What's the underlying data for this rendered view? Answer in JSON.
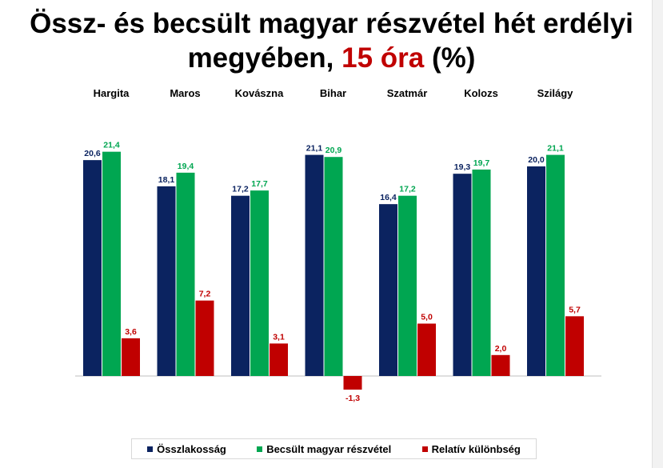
{
  "title": {
    "line1": "Össz- és becsült magyar részvétel hét erdélyi",
    "line2_pre": "megyében, ",
    "line2_highlight": "15 óra",
    "line2_post": " (%)"
  },
  "colors": {
    "Összlakosság": "#0b2360",
    "Becsült magyar részvétel": "#00a651",
    "Relatív különbség": "#c00000",
    "title_highlight": "#c00000"
  },
  "chart_data": {
    "type": "bar",
    "title": "Össz- és becsült magyar részvétel hét erdélyi megyében, 15 óra (%)",
    "categories": [
      "Hargita",
      "Maros",
      "Kovászna",
      "Bihar",
      "Szatmár",
      "Kolozs",
      "Szilágy"
    ],
    "series": [
      {
        "name": "Összlakosság",
        "values": [
          20.6,
          18.1,
          17.2,
          21.1,
          16.4,
          19.3,
          20.0
        ]
      },
      {
        "name": "Becsült magyar részvétel",
        "values": [
          21.4,
          19.4,
          17.7,
          20.9,
          17.2,
          19.7,
          21.1
        ]
      },
      {
        "name": "Relatív különbség",
        "values": [
          3.6,
          7.2,
          3.1,
          -1.3,
          5.0,
          2.0,
          5.7
        ]
      }
    ],
    "xlabel": "",
    "ylabel": "",
    "ylim": [
      -3.5,
      25
    ],
    "grid": false,
    "legend_position": "bottom",
    "category_labels_position": "top",
    "decimal_separator": ","
  }
}
